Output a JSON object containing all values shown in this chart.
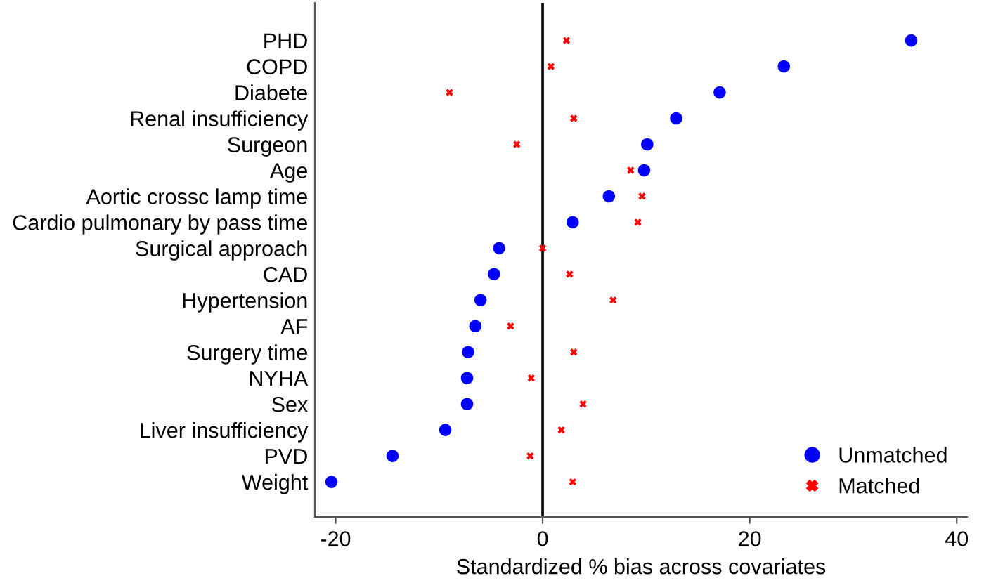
{
  "chart_data": {
    "type": "scatter",
    "xlabel": "Standardized % bias across covariates",
    "categories": [
      "PHD",
      "COPD",
      "Diabete",
      "Renal insufficiency",
      "Surgeon",
      "Age",
      "Aortic crossc lamp time",
      "Cardio pulmonary by pass time",
      "Surgical approach",
      "CAD",
      "Hypertension",
      "AF",
      "Surgery time",
      "NYHA",
      "Sex",
      "Liver insufficiency",
      "PVD",
      "Weight"
    ],
    "orientation": "horizontal",
    "series": [
      {
        "name": "Unmatched",
        "color": "#0000ff",
        "marker": "circle",
        "values": [
          35.6,
          23.3,
          17.1,
          12.9,
          10.1,
          9.8,
          6.4,
          2.9,
          -4.2,
          -4.7,
          -6.0,
          -6.5,
          -7.2,
          -7.3,
          -7.3,
          -9.4,
          -14.5,
          -20.4
        ]
      },
      {
        "name": "Matched",
        "color": "#ff0000",
        "marker": "cross",
        "values": [
          2.3,
          0.8,
          -9.0,
          3.0,
          -2.5,
          8.5,
          9.6,
          9.2,
          0.0,
          2.6,
          6.8,
          -3.1,
          3.0,
          -1.1,
          3.9,
          1.8,
          -1.2,
          2.9
        ]
      }
    ],
    "xlim": [
      -22,
      41
    ],
    "xticks": [
      -20,
      0,
      20,
      40
    ],
    "ref_lines": [
      {
        "axis": "x",
        "value": 0,
        "color": "#000000"
      }
    ],
    "grid": false,
    "legend": "bottom right"
  }
}
